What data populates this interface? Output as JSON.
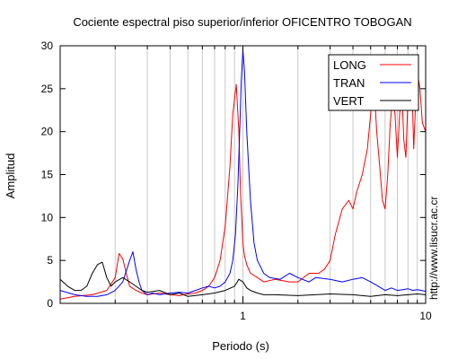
{
  "chart_data": {
    "type": "line",
    "title": "Cociente espectral piso superior/inferior OFICENTRO TOBOGAN",
    "xlabel": "Periodo (s)",
    "ylabel": "Amplitud",
    "xscale": "log",
    "xlim": [
      0.1,
      10
    ],
    "ylim": [
      0,
      30
    ],
    "x_tick_labels": [
      {
        "value": 1,
        "label": "1"
      },
      {
        "value": 10,
        "label": "10"
      }
    ],
    "y_tick_labels": [
      "0",
      "5",
      "10",
      "15",
      "20",
      "25",
      "30"
    ],
    "y_ticks": [
      0,
      5,
      10,
      15,
      20,
      25,
      30
    ],
    "grid": "vertical-log",
    "legend_position": "top-right",
    "watermark": "http://www.lisucr.ac.cr",
    "series": [
      {
        "name": "LONG",
        "color": "#ff0000",
        "x": [
          0.1,
          0.12,
          0.15,
          0.18,
          0.2,
          0.21,
          0.22,
          0.23,
          0.24,
          0.26,
          0.28,
          0.3,
          0.35,
          0.4,
          0.45,
          0.5,
          0.55,
          0.6,
          0.65,
          0.7,
          0.75,
          0.8,
          0.85,
          0.88,
          0.92,
          0.95,
          0.97,
          0.99,
          1.0,
          1.02,
          1.05,
          1.1,
          1.2,
          1.3,
          1.5,
          1.8,
          2.0,
          2.3,
          2.6,
          2.8,
          3.0,
          3.2,
          3.5,
          3.8,
          4.0,
          4.2,
          4.5,
          4.8,
          5.0,
          5.2,
          5.4,
          5.6,
          5.8,
          6.0,
          6.2,
          6.4,
          6.6,
          6.8,
          7.0,
          7.2,
          7.4,
          7.6,
          7.8,
          8.0,
          8.2,
          8.4,
          8.6,
          8.8,
          9.0,
          9.3,
          9.6,
          10.0
        ],
        "y": [
          0.5,
          0.8,
          1.0,
          1.5,
          3.0,
          5.8,
          5.2,
          3.5,
          2.0,
          1.5,
          1.2,
          1.0,
          1.2,
          1.0,
          0.9,
          1.1,
          1.2,
          1.5,
          2.0,
          3.0,
          5.0,
          9.0,
          16.0,
          22.0,
          25.5,
          20.0,
          13.0,
          9.0,
          7.0,
          5.5,
          4.5,
          3.5,
          3.0,
          2.5,
          2.8,
          2.5,
          2.5,
          3.5,
          3.5,
          4.0,
          5.0,
          8.0,
          11.0,
          12.0,
          11.0,
          13.0,
          15.0,
          18.0,
          22.0,
          26.0,
          20.0,
          16.0,
          12.0,
          11.0,
          15.0,
          21.0,
          24.0,
          22.0,
          17.0,
          22.0,
          25.0,
          19.0,
          17.0,
          24.0,
          28.0,
          26.0,
          18.0,
          23.0,
          27.0,
          25.0,
          21.0,
          20.0
        ]
      },
      {
        "name": "TRAN",
        "color": "#0000ff",
        "x": [
          0.1,
          0.12,
          0.14,
          0.16,
          0.18,
          0.2,
          0.22,
          0.24,
          0.25,
          0.26,
          0.27,
          0.28,
          0.3,
          0.32,
          0.35,
          0.4,
          0.45,
          0.5,
          0.55,
          0.6,
          0.65,
          0.7,
          0.75,
          0.8,
          0.85,
          0.88,
          0.91,
          0.94,
          0.96,
          0.98,
          1.0,
          1.02,
          1.05,
          1.1,
          1.15,
          1.2,
          1.3,
          1.4,
          1.6,
          1.8,
          2.0,
          2.3,
          2.5,
          3.0,
          3.5,
          4.0,
          4.5,
          5.0,
          5.5,
          6.0,
          6.5,
          7.0,
          7.5,
          8.0,
          8.5,
          9.0,
          9.5,
          10.0
        ],
        "y": [
          1.5,
          1.0,
          0.8,
          0.8,
          1.0,
          1.5,
          2.5,
          5.0,
          6.0,
          4.0,
          2.5,
          1.5,
          1.0,
          1.2,
          1.0,
          1.2,
          1.3,
          1.2,
          1.5,
          1.8,
          2.0,
          1.8,
          2.0,
          2.5,
          3.5,
          5.0,
          8.0,
          14.0,
          20.0,
          26.0,
          29.5,
          27.0,
          20.0,
          12.0,
          7.0,
          5.0,
          3.5,
          3.0,
          2.8,
          3.5,
          3.0,
          2.5,
          3.0,
          2.8,
          2.5,
          2.8,
          3.0,
          2.5,
          2.0,
          1.5,
          1.8,
          1.5,
          1.6,
          1.7,
          1.5,
          1.6,
          1.5,
          1.4
        ]
      },
      {
        "name": "VERT",
        "color": "#000000",
        "x": [
          0.1,
          0.11,
          0.12,
          0.13,
          0.14,
          0.15,
          0.16,
          0.17,
          0.18,
          0.19,
          0.2,
          0.22,
          0.24,
          0.26,
          0.28,
          0.3,
          0.35,
          0.4,
          0.45,
          0.5,
          0.6,
          0.7,
          0.8,
          0.9,
          0.95,
          1.0,
          1.05,
          1.1,
          1.2,
          1.3,
          1.5,
          2.0,
          3.0,
          4.0,
          5.0,
          6.0,
          7.0,
          8.0,
          9.0,
          10.0
        ],
        "y": [
          2.8,
          2.0,
          1.5,
          1.5,
          2.0,
          3.5,
          4.5,
          4.8,
          3.0,
          2.0,
          2.5,
          3.0,
          2.5,
          2.0,
          1.5,
          1.3,
          1.5,
          1.0,
          1.2,
          0.8,
          1.0,
          1.2,
          1.5,
          2.0,
          2.8,
          2.5,
          1.8,
          1.5,
          1.2,
          1.0,
          1.0,
          0.9,
          1.1,
          1.0,
          0.8,
          1.0,
          0.9,
          1.0,
          1.1,
          1.0
        ]
      }
    ]
  }
}
